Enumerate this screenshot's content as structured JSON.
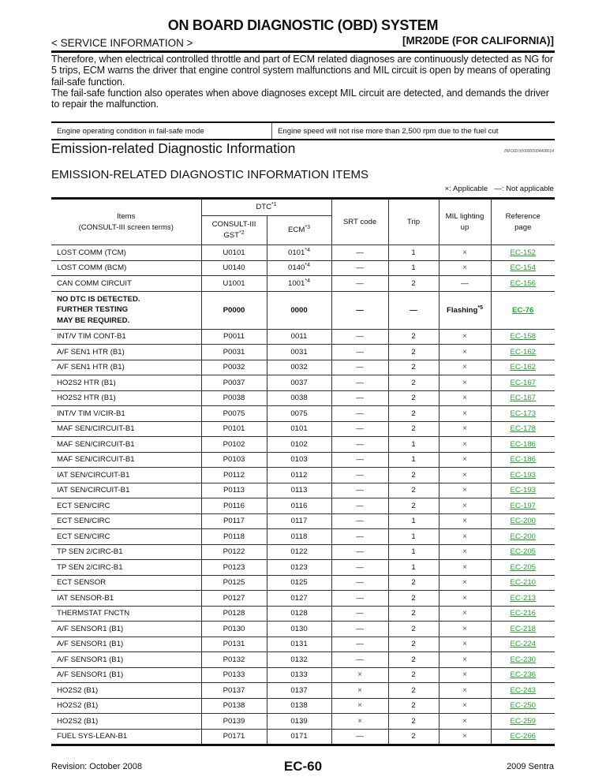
{
  "header": {
    "title": "ON BOARD DIAGNOSTIC (OBD) SYSTEM",
    "section_label": "< SERVICE INFORMATION >",
    "model": "[MR20DE (FOR CALIFORNIA)]"
  },
  "paragraphs": [
    "Therefore, when electrical controlled throttle and part of ECM related diagnoses are continuously detected as NG for 5 trips, ECM warns the driver that engine control system malfunctions and MIL circuit is open by means of operating fail-safe function.",
    "The fail-safe function also operates when above diagnoses except MIL circuit are detected, and demands the driver to repair the malfunction."
  ],
  "failsafe_table": {
    "condition_label": "Engine operating condition in fail-safe mode",
    "condition_value": "Engine speed will not rise more than 2,500 rpm due to the fuel cut"
  },
  "section_title": "Emission-related Diagnostic Information",
  "info_id": "INFOID:0000000004408014",
  "subsection_title": "EMISSION-RELATED DIAGNOSTIC INFORMATION ITEMS",
  "legend": {
    "applicable": "×: Applicable",
    "not_applicable": "—: Not applicable"
  },
  "table": {
    "headers": {
      "items": "Items",
      "items_sub": "(CONSULT-III screen terms)",
      "dtc": "DTC",
      "dtc_note": "*1",
      "consult": "CONSULT-III",
      "gst": "GST",
      "gst_note": "*2",
      "ecm": "ECM",
      "ecm_note": "*3",
      "srt": "SRT code",
      "trip": "Trip",
      "mil": "MIL lighting up",
      "ref": "Reference page"
    },
    "link_color": "#2e9a3a",
    "rows": [
      {
        "item": "LOST COMM (TCM)",
        "consult": "U0101",
        "ecm": "0101",
        "ecm_note": "*4",
        "srt": "—",
        "trip": "1",
        "mil": "×",
        "ref": "EC-152"
      },
      {
        "item": "LOST COMM (BCM)",
        "consult": "U0140",
        "ecm": "0140",
        "ecm_note": "*4",
        "srt": "—",
        "trip": "1",
        "mil": "×",
        "ref": "EC-154"
      },
      {
        "item": "CAN COMM CIRCUIT",
        "consult": "U1001",
        "ecm": "1001",
        "ecm_note": "*4",
        "srt": "—",
        "trip": "2",
        "mil": "—",
        "ref": "EC-156"
      },
      {
        "item": "NO DTC IS DETECTED.\nFURTHER TESTING\nMAY BE REQUIRED.",
        "consult": "P0000",
        "ecm": "0000",
        "srt": "—",
        "trip": "—",
        "mil": "Flashing",
        "mil_note": "*5",
        "ref": "EC-76",
        "bold": true
      },
      {
        "item": "INT/V TIM CONT-B1",
        "consult": "P0011",
        "ecm": "0011",
        "srt": "—",
        "trip": "2",
        "mil": "×",
        "ref": "EC-158"
      },
      {
        "item": "A/F SEN1 HTR (B1)",
        "consult": "P0031",
        "ecm": "0031",
        "srt": "—",
        "trip": "2",
        "mil": "×",
        "ref": "EC-162"
      },
      {
        "item": "A/F SEN1 HTR (B1)",
        "consult": "P0032",
        "ecm": "0032",
        "srt": "—",
        "trip": "2",
        "mil": "×",
        "ref": "EC-162"
      },
      {
        "item": "HO2S2 HTR (B1)",
        "consult": "P0037",
        "ecm": "0037",
        "srt": "—",
        "trip": "2",
        "mil": "×",
        "ref": "EC-167"
      },
      {
        "item": "HO2S2 HTR (B1)",
        "consult": "P0038",
        "ecm": "0038",
        "srt": "—",
        "trip": "2",
        "mil": "×",
        "ref": "EC-167"
      },
      {
        "item": "INT/V TIM V/CIR-B1",
        "consult": "P0075",
        "ecm": "0075",
        "srt": "—",
        "trip": "2",
        "mil": "×",
        "ref": "EC-173"
      },
      {
        "item": "MAF SEN/CIRCUIT-B1",
        "consult": "P0101",
        "ecm": "0101",
        "srt": "—",
        "trip": "2",
        "mil": "×",
        "ref": "EC-178"
      },
      {
        "item": "MAF SEN/CIRCUIT-B1",
        "consult": "P0102",
        "ecm": "0102",
        "srt": "—",
        "trip": "1",
        "mil": "×",
        "ref": "EC-186"
      },
      {
        "item": "MAF SEN/CIRCUIT-B1",
        "consult": "P0103",
        "ecm": "0103",
        "srt": "—",
        "trip": "1",
        "mil": "×",
        "ref": "EC-186"
      },
      {
        "item": "IAT SEN/CIRCUIT-B1",
        "consult": "P0112",
        "ecm": "0112",
        "srt": "—",
        "trip": "2",
        "mil": "×",
        "ref": "EC-193"
      },
      {
        "item": "IAT SEN/CIRCUIT-B1",
        "consult": "P0113",
        "ecm": "0113",
        "srt": "—",
        "trip": "2",
        "mil": "×",
        "ref": "EC-193"
      },
      {
        "item": "ECT SEN/CIRC",
        "consult": "P0116",
        "ecm": "0116",
        "srt": "—",
        "trip": "2",
        "mil": "×",
        "ref": "EC-197"
      },
      {
        "item": "ECT SEN/CIRC",
        "consult": "P0117",
        "ecm": "0117",
        "srt": "—",
        "trip": "1",
        "mil": "×",
        "ref": "EC-200"
      },
      {
        "item": "ECT SEN/CIRC",
        "consult": "P0118",
        "ecm": "0118",
        "srt": "—",
        "trip": "1",
        "mil": "×",
        "ref": "EC-200"
      },
      {
        "item": "TP SEN 2/CIRC-B1",
        "consult": "P0122",
        "ecm": "0122",
        "srt": "—",
        "trip": "1",
        "mil": "×",
        "ref": "EC-205"
      },
      {
        "item": "TP SEN 2/CIRC-B1",
        "consult": "P0123",
        "ecm": "0123",
        "srt": "—",
        "trip": "1",
        "mil": "×",
        "ref": "EC-205"
      },
      {
        "item": "ECT SENSOR",
        "consult": "P0125",
        "ecm": "0125",
        "srt": "—",
        "trip": "2",
        "mil": "×",
        "ref": "EC-210"
      },
      {
        "item": "IAT SENSOR-B1",
        "consult": "P0127",
        "ecm": "0127",
        "srt": "—",
        "trip": "2",
        "mil": "×",
        "ref": "EC-213"
      },
      {
        "item": "THERMSTAT FNCTN",
        "consult": "P0128",
        "ecm": "0128",
        "srt": "—",
        "trip": "2",
        "mil": "×",
        "ref": "EC-216"
      },
      {
        "item": "A/F SENSOR1 (B1)",
        "consult": "P0130",
        "ecm": "0130",
        "srt": "—",
        "trip": "2",
        "mil": "×",
        "ref": "EC-218"
      },
      {
        "item": "A/F SENSOR1 (B1)",
        "consult": "P0131",
        "ecm": "0131",
        "srt": "—",
        "trip": "2",
        "mil": "×",
        "ref": "EC-224"
      },
      {
        "item": "A/F SENSOR1 (B1)",
        "consult": "P0132",
        "ecm": "0132",
        "srt": "—",
        "trip": "2",
        "mil": "×",
        "ref": "EC-230"
      },
      {
        "item": "A/F SENSOR1 (B1)",
        "consult": "P0133",
        "ecm": "0133",
        "srt": "×",
        "trip": "2",
        "mil": "×",
        "ref": "EC-236"
      },
      {
        "item": "HO2S2 (B1)",
        "consult": "P0137",
        "ecm": "0137",
        "srt": "×",
        "trip": "2",
        "mil": "×",
        "ref": "EC-243"
      },
      {
        "item": "HO2S2 (B1)",
        "consult": "P0138",
        "ecm": "0138",
        "srt": "×",
        "trip": "2",
        "mil": "×",
        "ref": "EC-250"
      },
      {
        "item": "HO2S2 (B1)",
        "consult": "P0139",
        "ecm": "0139",
        "srt": "×",
        "trip": "2",
        "mil": "×",
        "ref": "EC-259"
      },
      {
        "item": "FUEL SYS-LEAN-B1",
        "consult": "P0171",
        "ecm": "0171",
        "srt": "—",
        "trip": "2",
        "mil": "×",
        "ref": "EC-266"
      }
    ]
  },
  "footer": {
    "revision": "Revision: October 2008",
    "page": "EC-60",
    "vehicle": "2009 Sentra"
  }
}
